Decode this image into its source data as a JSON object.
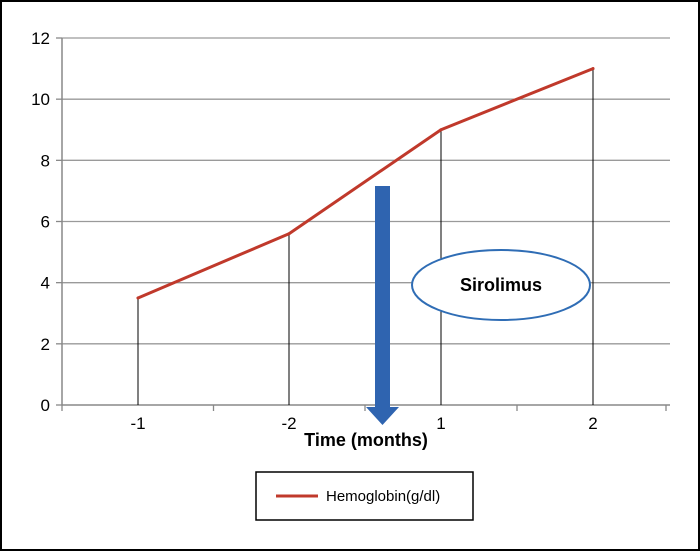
{
  "chart_data": {
    "type": "line",
    "categories": [
      "-1",
      "-2",
      "1",
      "2"
    ],
    "series": [
      {
        "name": "Hemoglobin(g/dl)",
        "values": [
          3.5,
          5.6,
          9.0,
          11.0
        ],
        "color": "#c0392b"
      }
    ],
    "xlabel": "Time (months)",
    "ylabel": "",
    "ylim": [
      0,
      12
    ],
    "yticks": [
      0,
      2,
      4,
      6,
      8,
      10,
      12
    ],
    "grid": true,
    "legend_position": "bottom",
    "drop_lines": true,
    "annotations": [
      {
        "text": "Sirolimus",
        "shape": "ellipse",
        "outline_color": "#2f6db5"
      },
      {
        "shape": "down-arrow",
        "color": "#2f64b0"
      }
    ]
  }
}
